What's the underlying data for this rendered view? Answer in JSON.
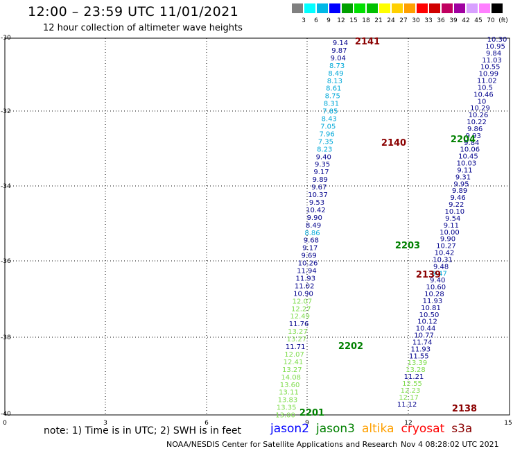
{
  "title": "12:00 – 23:59 UTC 11/01/2021",
  "subtitle": "12 hour collection of altimeter wave heights",
  "legend": {
    "colors": [
      "#808080",
      "#00ffff",
      "#00b8e6",
      "#0000ff",
      "#00a000",
      "#00e000",
      "#00c000",
      "#ffff00",
      "#ffd000",
      "#ffa000",
      "#ff0000",
      "#d00000",
      "#c00060",
      "#a000a0",
      "#d8a0ff",
      "#ff80ff",
      "#000000"
    ],
    "labels": [
      "3",
      "6",
      "9",
      "12",
      "15",
      "18",
      "21",
      "24",
      "27",
      "30",
      "33",
      "36",
      "39",
      "42",
      "45",
      "70",
      "(ft)"
    ]
  },
  "lat_labels": [
    "-30",
    "-32",
    "-34",
    "-36",
    "-38",
    "-40"
  ],
  "lon_labels": [
    "0",
    "3",
    "6",
    "9",
    "12",
    "15"
  ],
  "passes": [
    {
      "id": "2141",
      "color": "#8b0000"
    },
    {
      "id": "2140",
      "color": "#8b0000"
    },
    {
      "id": "2204",
      "color": "#008000"
    },
    {
      "id": "2203",
      "color": "#008000"
    },
    {
      "id": "2139",
      "color": "#8b0000"
    },
    {
      "id": "2202",
      "color": "#008000"
    },
    {
      "id": "2138",
      "color": "#8b0000"
    },
    {
      "id": "2201",
      "color": "#008000"
    }
  ],
  "tracks": [
    {
      "name": "track-2141",
      "values": [
        [
          "9.14",
          "#00008b"
        ],
        [
          "9.87",
          "#00008b"
        ],
        [
          "9.04",
          "#00008b"
        ],
        [
          "8.73",
          "#00a8d8"
        ],
        [
          "8.49",
          "#00a8d8"
        ],
        [
          "8.13",
          "#00a8d8"
        ],
        [
          "8.61",
          "#00a8d8"
        ],
        [
          "8.75",
          "#00a8d8"
        ],
        [
          "8.31",
          "#00a8d8"
        ],
        [
          "7.85",
          "#00a8d8"
        ],
        [
          "8.43",
          "#00a8d8"
        ],
        [
          "7.05",
          "#00a8d8"
        ],
        [
          "7.96",
          "#00a8d8"
        ],
        [
          "7.35",
          "#00a8d8"
        ],
        [
          "8.23",
          "#00a8d8"
        ],
        [
          "9.40",
          "#00008b"
        ],
        [
          "9.35",
          "#00008b"
        ],
        [
          "9.17",
          "#00008b"
        ],
        [
          "9.89",
          "#00008b"
        ],
        [
          "9.67",
          "#00008b"
        ],
        [
          "10.37",
          "#00008b"
        ],
        [
          "9.53",
          "#00008b"
        ],
        [
          "10.42",
          "#00008b"
        ],
        [
          "9.90",
          "#00008b"
        ],
        [
          "8.49",
          "#00008b"
        ],
        [
          "8.86",
          "#00a8d8"
        ],
        [
          "9.68",
          "#00008b"
        ],
        [
          "9.17",
          "#00008b"
        ],
        [
          "9.69",
          "#00008b"
        ],
        [
          "10.26",
          "#00008b"
        ],
        [
          "11.94",
          "#00008b"
        ],
        [
          "11.93",
          "#00008b"
        ],
        [
          "11.02",
          "#00008b"
        ],
        [
          "10.90",
          "#00008b"
        ],
        [
          "12.07",
          "#7ddc4a"
        ],
        [
          "12.27",
          "#7ddc4a"
        ],
        [
          "12.49",
          "#7ddc4a"
        ],
        [
          "11.76",
          "#00008b"
        ],
        [
          "13.27",
          "#7ddc4a"
        ],
        [
          "13.27",
          "#7ddc4a"
        ],
        [
          "11.71",
          "#00008b"
        ],
        [
          "12.07",
          "#7ddc4a"
        ],
        [
          "12.41",
          "#7ddc4a"
        ],
        [
          "13.27",
          "#7ddc4a"
        ],
        [
          "14.08",
          "#7ddc4a"
        ],
        [
          "13.60",
          "#7ddc4a"
        ],
        [
          "13.11",
          "#7ddc4a"
        ],
        [
          "13.83",
          "#7ddc4a"
        ],
        [
          "13.35",
          "#7ddc4a"
        ],
        [
          "13.00",
          "#7ddc4a"
        ]
      ]
    },
    {
      "name": "track-2204",
      "values": [
        [
          "10.30",
          "#00008b"
        ],
        [
          "10.95",
          "#00008b"
        ],
        [
          "9.84",
          "#00008b"
        ],
        [
          "11.03",
          "#00008b"
        ],
        [
          "10.55",
          "#00008b"
        ],
        [
          "10.99",
          "#00008b"
        ],
        [
          "11.02",
          "#00008b"
        ],
        [
          "10.5",
          "#00008b"
        ],
        [
          "10.46",
          "#00008b"
        ],
        [
          "10",
          "#00008b"
        ],
        [
          "10.29",
          "#00008b"
        ],
        [
          "10.26",
          "#00008b"
        ],
        [
          "10.22",
          "#00008b"
        ],
        [
          "9.86",
          "#00008b"
        ],
        [
          "9.93",
          "#00008b"
        ],
        [
          "9.84",
          "#00008b"
        ],
        [
          "10.06",
          "#00008b"
        ],
        [
          "10.45",
          "#00008b"
        ],
        [
          "10.03",
          "#00008b"
        ],
        [
          "9.11",
          "#00008b"
        ],
        [
          "9.31",
          "#00008b"
        ],
        [
          "9.95",
          "#00008b"
        ],
        [
          "9.89",
          "#00008b"
        ],
        [
          "9.46",
          "#00008b"
        ],
        [
          "9.22",
          "#00008b"
        ],
        [
          "10.10",
          "#00008b"
        ],
        [
          "9.54",
          "#00008b"
        ],
        [
          "9.11",
          "#00008b"
        ],
        [
          "10.00",
          "#00008b"
        ],
        [
          "9.90",
          "#00008b"
        ],
        [
          "10.27",
          "#00008b"
        ],
        [
          "10.42",
          "#00008b"
        ],
        [
          "10.31",
          "#00008b"
        ],
        [
          "9.48",
          "#00008b"
        ],
        [
          "9.47",
          "#00a8d8"
        ],
        [
          "9.40",
          "#00008b"
        ],
        [
          "10.60",
          "#00008b"
        ],
        [
          "10.28",
          "#00008b"
        ],
        [
          "11.93",
          "#00008b"
        ],
        [
          "10.81",
          "#00008b"
        ],
        [
          "10.50",
          "#00008b"
        ],
        [
          "10.12",
          "#00008b"
        ],
        [
          "10.44",
          "#00008b"
        ],
        [
          "10.77",
          "#00008b"
        ],
        [
          "11.74",
          "#00008b"
        ],
        [
          "11.93",
          "#00008b"
        ],
        [
          "11.55",
          "#00008b"
        ],
        [
          "13.39",
          "#7ddc4a"
        ],
        [
          "13.28",
          "#7ddc4a"
        ],
        [
          "11.21",
          "#00008b"
        ],
        [
          "12.55",
          "#7ddc4a"
        ],
        [
          "12.23",
          "#7ddc4a"
        ],
        [
          "12.17",
          "#7ddc4a"
        ],
        [
          "11.12",
          "#00008b"
        ]
      ]
    }
  ],
  "note": "note: 1) Time is in UTC; 2) SWH is in feet",
  "satellites": [
    {
      "name": "jason2",
      "color": "#0000ff"
    },
    {
      "name": "jason3",
      "color": "#008000"
    },
    {
      "name": "altika",
      "color": "#ffa000"
    },
    {
      "name": "cryosat",
      "color": "#ff0000"
    },
    {
      "name": "s3a",
      "color": "#8b0000"
    }
  ],
  "footer": {
    "credit": "NOAA/NESDIS Center for Satellite Applications and Research",
    "stamp": "Nov  4 08:28:02 UTC 2021"
  }
}
